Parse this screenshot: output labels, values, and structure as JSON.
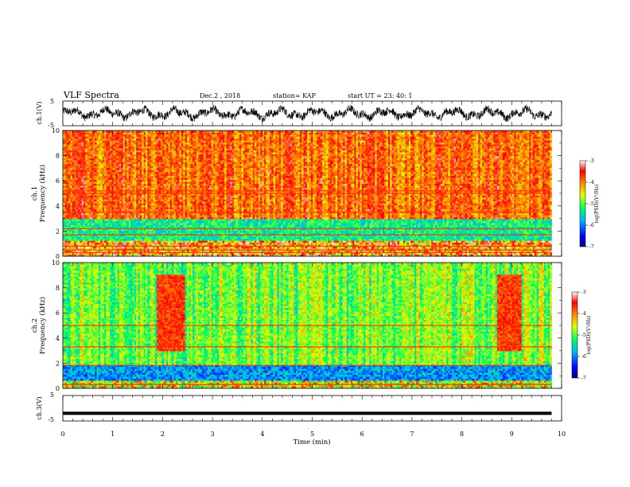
{
  "header": {
    "title": "VLF Spectra",
    "date": "Dec.2 , 2018",
    "station": "station= KAP",
    "start": "start UT = 23: 40: 1"
  },
  "colors": {
    "colormap": [
      "#1a00b0",
      "#0040ff",
      "#00d0ff",
      "#40ff40",
      "#e8f000",
      "#ff8000",
      "#ff2000",
      "#f0f0f0"
    ],
    "trace": "#000000"
  },
  "chart_data": [
    {
      "type": "line",
      "panel": "ch1-waveform",
      "ylabel": "ch.1(V)",
      "ylim": [
        -5,
        5
      ],
      "yticks": [
        "5",
        "-5"
      ],
      "xlim": [
        0,
        10
      ],
      "note_trace": "dense noise-like waveform, mostly between -3 and 3 V"
    },
    {
      "type": "heatmap",
      "panel": "ch1-spectrogram",
      "ylabel": "ch.1 Frequency (kHz)",
      "ylim": [
        0,
        10
      ],
      "yticks": [
        "0",
        "2",
        "4",
        "6",
        "8",
        "10"
      ],
      "xlim": [
        0,
        9.8
      ],
      "colorbar": {
        "label": "log(PSD)(V²/Hz)",
        "range": [
          -7,
          -3
        ],
        "ticks": [
          "-3",
          "-4",
          "-5",
          "-6",
          "-7"
        ]
      },
      "bands": [
        {
          "f_from": 0,
          "f_to": 1.2,
          "level": "mixed"
        },
        {
          "f_from": 1.2,
          "f_to": 3.0,
          "level": -5.2
        },
        {
          "f_from": 3.0,
          "f_to": 10,
          "level": -3.8
        }
      ],
      "lines_khz": [
        0.3,
        0.5,
        0.8,
        1.7,
        2.2,
        3.5,
        5.0,
        5.2
      ]
    },
    {
      "type": "heatmap",
      "panel": "ch2-spectrogram",
      "ylabel": "ch.2 Frequency (kHz)",
      "ylim": [
        0,
        10
      ],
      "yticks": [
        "0",
        "2",
        "4",
        "6",
        "8",
        "10"
      ],
      "xlim": [
        0,
        9.8
      ],
      "colorbar": {
        "label": "log(PSD)(V²/Hz)",
        "range": [
          -7,
          -3
        ],
        "ticks": [
          "-3",
          "-4",
          "-5",
          "-6",
          "-7"
        ]
      },
      "bands": [
        {
          "f_from": 0,
          "f_to": 0.6,
          "level": "mixed"
        },
        {
          "f_from": 0.6,
          "f_to": 1.8,
          "level": -5.8
        },
        {
          "f_from": 1.8,
          "f_to": 10,
          "level": -4.9
        }
      ],
      "lines_khz": [
        0.3,
        1.8,
        3.3,
        5.0
      ],
      "bursts_min": [
        [
          1.9,
          2.45
        ],
        [
          8.7,
          9.2
        ]
      ]
    },
    {
      "type": "line",
      "panel": "ch3-waveform",
      "ylabel": "ch.3(V)",
      "ylim": [
        -5,
        5
      ],
      "yticks": [
        "5",
        "-5"
      ],
      "xlim": [
        0,
        10
      ],
      "constant_value": -2.0
    }
  ],
  "xaxis": {
    "label": "Time (min)",
    "ticks": [
      "0",
      "1",
      "2",
      "3",
      "4",
      "5",
      "6",
      "7",
      "8",
      "9",
      "10"
    ]
  }
}
